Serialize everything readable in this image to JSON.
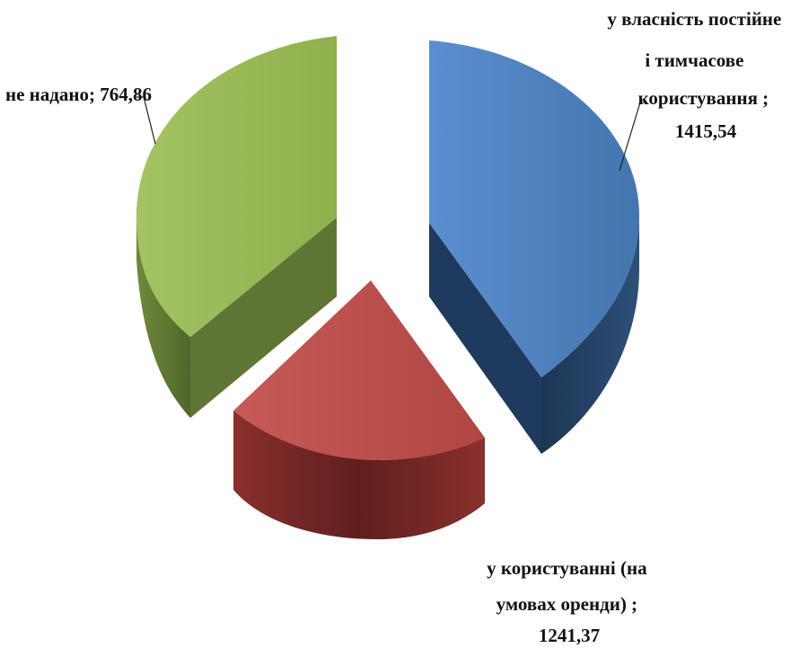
{
  "chart_data": {
    "type": "pie",
    "style": "3d-exploded",
    "title": "",
    "slices": [
      {
        "label_lines": [
          "у власність постійне",
          "і тимчасове",
          "користування ;",
          "1415,54"
        ],
        "category": "у власність постійне і тимчасове користування",
        "value": 1415.54,
        "color": "#4f81bd",
        "side_color": "#233f62"
      },
      {
        "label_lines": [
          "у користуванні (на",
          "умовах оренди) ;",
          "1241,37"
        ],
        "category": "у користуванні (на умовах оренди)",
        "value": 1241.37,
        "color": "#c0504d",
        "side_color": "#7a2b29"
      },
      {
        "label_lines": [
          "не надано; 764,86"
        ],
        "category": "не надано",
        "value": 764.86,
        "color": "#9bbb59",
        "side_color": "#5b7032"
      }
    ]
  }
}
